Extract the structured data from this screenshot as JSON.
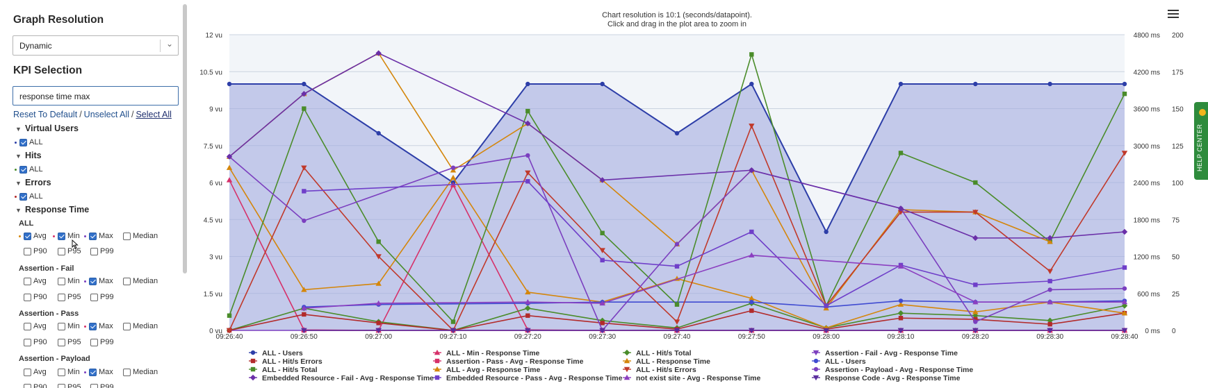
{
  "sidebar": {
    "graph_resolution_title": "Graph Resolution",
    "resolution_value": "Dynamic",
    "kpi_title": "KPI Selection",
    "search_value": "response time max",
    "reset_link": "Reset To Default",
    "unselect_link": "Unselect All",
    "select_link": "Select All",
    "groups": [
      {
        "label": "Virtual Users",
        "item": "ALL",
        "color": "#2d3ea8"
      },
      {
        "label": "Hits",
        "item": "ALL",
        "color": "#4a8c2a"
      },
      {
        "label": "Errors",
        "item": "ALL",
        "color": "#b22b2b"
      },
      {
        "label": "Response Time"
      }
    ],
    "subgroups": [
      "ALL",
      "Assertion - Fail",
      "Assertion - Pass",
      "Assertion - Payload"
    ],
    "opts": {
      "avg": "Avg",
      "min": "Min",
      "max": "Max",
      "median": "Median",
      "p90": "P90",
      "p95": "P95",
      "p99": "P99"
    }
  },
  "chart_data": {
    "type": "line",
    "title": "Chart resolution is 10:1 (seconds/datapoint).",
    "subtitle": "Click and drag in the plot area to zoom in",
    "x": [
      "09:26:40",
      "09:26:50",
      "09:27:00",
      "09:27:10",
      "09:27:20",
      "09:27:30",
      "09:27:40",
      "09:27:50",
      "09:28:00",
      "09:28:10",
      "09:28:20",
      "09:28:30",
      "09:28:40"
    ],
    "y_left": {
      "ticks": [
        "0 vu",
        "1.5 vu",
        "3 vu",
        "4.5 vu",
        "6 vu",
        "7.5 vu",
        "9 vu",
        "10.5 vu",
        "12 vu"
      ],
      "ylim": [
        0,
        12
      ]
    },
    "y_right1": {
      "ticks": [
        "0 ms",
        "600 ms",
        "1200 ms",
        "1800 ms",
        "2400 ms",
        "3000 ms",
        "3600 ms",
        "4200 ms",
        "4800 ms"
      ]
    },
    "y_right2": {
      "ticks": [
        "0",
        "25",
        "50",
        "75",
        "100",
        "125",
        "150",
        "175",
        "200"
      ]
    },
    "grid": true,
    "legend_position": "bottom",
    "series": [
      {
        "name": "ALL - Users",
        "color": "#2d3ea8",
        "marker": "circle",
        "area": true,
        "values": [
          10,
          10,
          8,
          6,
          10,
          10,
          8,
          10,
          4,
          10,
          10,
          10,
          10
        ]
      },
      {
        "name": "ALL - Min - Response Time",
        "color": "#d6316a",
        "marker": "triangle",
        "values": [
          6.1,
          0.02,
          0.0,
          5.9,
          0.02,
          0.0,
          0.0,
          0.0,
          0.0,
          0.0,
          0.0,
          0.0,
          0.0
        ]
      },
      {
        "name": "ALL - Hit/s Total",
        "color": "#4a8c2a",
        "marker": "diamond",
        "values": [
          0.0,
          0.9,
          0.35,
          0.0,
          0.9,
          0.4,
          0.1,
          1.1,
          0.1,
          0.7,
          0.6,
          0.4,
          1.0
        ]
      },
      {
        "name": "Assertion - Fail - Avg - Response Time",
        "color": "#7b3fbf",
        "marker": "triangle-down",
        "values": [
          0.0,
          0.0,
          0.0,
          0.0,
          0.0,
          0.0,
          0.0,
          0.0,
          0.0,
          0.0,
          0.0,
          0.0,
          0.0
        ]
      },
      {
        "name": "ALL - Hit/s Errors",
        "color": "#b22b2b",
        "marker": "square",
        "values": [
          0.0,
          0.65,
          0.3,
          0.0,
          0.6,
          0.3,
          0.05,
          0.8,
          0.05,
          0.5,
          0.45,
          0.25,
          0.7
        ]
      },
      {
        "name": "Assertion - Pass - Avg - Response Time",
        "color": "#d6316a",
        "marker": "square",
        "values": [
          null,
          0.0,
          0.0,
          0.0,
          0.0,
          0.0,
          0.0,
          0.0,
          0.0,
          0.0,
          0.0,
          0.0,
          0.0
        ]
      },
      {
        "name": "ALL - Response Time",
        "color": "#d4860b",
        "marker": "triangle",
        "values": [
          6.6,
          1.65,
          1.9,
          6.2,
          1.55,
          1.15,
          2.1,
          1.3,
          0.1,
          1.05,
          0.75,
          1.15,
          0.7
        ]
      },
      {
        "name": "ALL - Users",
        "color": "#3f4bd1",
        "marker": "circle",
        "values": [
          null,
          0.95,
          1.05,
          null,
          1.1,
          1.15,
          null,
          1.15,
          0.95,
          1.2,
          1.15,
          1.15,
          1.2
        ]
      },
      {
        "name": "ALL - Hit/s Total",
        "color": "#4a8c2a",
        "marker": "square",
        "values": [
          0.6,
          9.0,
          3.6,
          0.35,
          8.9,
          3.95,
          1.05,
          11.2,
          1.0,
          7.2,
          6.0,
          3.6,
          9.6
        ]
      },
      {
        "name": "ALL - Avg - Response Time",
        "color": "#d4860b",
        "marker": "triangle",
        "values": [
          7.05,
          9.6,
          11.25,
          6.5,
          8.4,
          6.1,
          3.5,
          6.5,
          0.9,
          4.9,
          4.8,
          3.6,
          null
        ]
      },
      {
        "name": "ALL - Hit/s Errors",
        "color": "#c0392b",
        "marker": "triangle-down",
        "values": [
          0.0,
          6.6,
          3.0,
          0.0,
          6.4,
          3.25,
          0.35,
          8.3,
          1.0,
          4.8,
          4.8,
          2.4,
          7.2
        ]
      },
      {
        "name": "Assertion - Payload - Avg - Response Time",
        "color": "#7b3fbf",
        "marker": "circle",
        "values": [
          7.05,
          4.45,
          null,
          6.6,
          7.1,
          0.0,
          3.5,
          6.5,
          null,
          4.95,
          0.35,
          1.65,
          1.7
        ]
      },
      {
        "name": "Embedded Resource - Fail - Avg - Response Time",
        "color": "#6a2fa8",
        "marker": "diamond",
        "values": [
          7.05,
          9.6,
          11.25,
          null,
          8.4,
          6.1,
          null,
          6.5,
          null,
          4.95,
          3.75,
          3.75,
          4.0
        ]
      },
      {
        "name": "Embedded Resource - Pass - Avg - Response Time",
        "color": "#6f3fc9",
        "marker": "square",
        "values": [
          null,
          5.65,
          null,
          null,
          6.05,
          2.85,
          2.6,
          4.0,
          1.0,
          2.65,
          1.85,
          2.0,
          2.55
        ]
      },
      {
        "name": "not exist site - Avg - Response Time",
        "color": "#8b3fc0",
        "marker": "triangle",
        "values": [
          null,
          0.9,
          1.1,
          null,
          1.15,
          1.1,
          null,
          3.05,
          null,
          2.6,
          1.15,
          1.15,
          1.15
        ]
      },
      {
        "name": "Response Code - Avg - Response Time",
        "color": "#5a2e9e",
        "marker": "triangle-down",
        "values": [
          null,
          0.0,
          0.0,
          0.0,
          0.0,
          0.0,
          0.0,
          0.0,
          0.0,
          0.0,
          0.0,
          0.0,
          0.0
        ]
      }
    ]
  },
  "help_center": "HELP CENTER"
}
